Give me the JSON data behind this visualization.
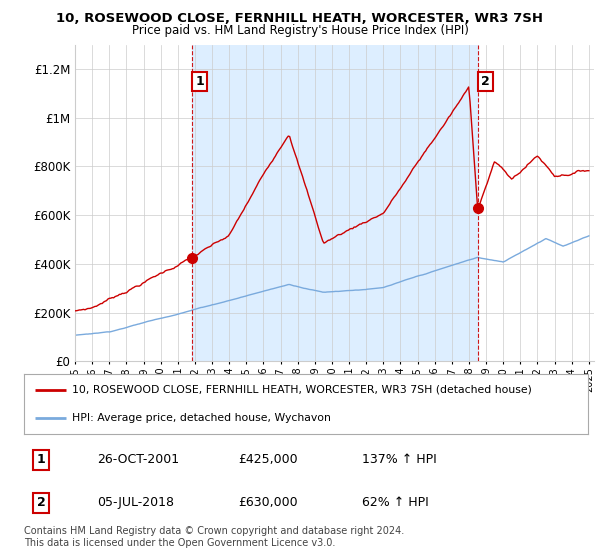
{
  "title": "10, ROSEWOOD CLOSE, FERNHILL HEATH, WORCESTER, WR3 7SH",
  "subtitle": "Price paid vs. HM Land Registry's House Price Index (HPI)",
  "legend_label_red": "10, ROSEWOOD CLOSE, FERNHILL HEATH, WORCESTER, WR3 7SH (detached house)",
  "legend_label_blue": "HPI: Average price, detached house, Wychavon",
  "transaction1_date": "26-OCT-2001",
  "transaction1_price": "£425,000",
  "transaction1_hpi": "137% ↑ HPI",
  "transaction2_date": "05-JUL-2018",
  "transaction2_price": "£630,000",
  "transaction2_hpi": "62% ↑ HPI",
  "footnote": "Contains HM Land Registry data © Crown copyright and database right 2024.\nThis data is licensed under the Open Government Licence v3.0.",
  "ylim": [
    0,
    1300000
  ],
  "yticks": [
    0,
    200000,
    400000,
    600000,
    800000,
    1000000,
    1200000
  ],
  "red_color": "#cc0000",
  "blue_color": "#7aaadd",
  "shade_color": "#ddeeff",
  "vline_color": "#cc0000",
  "marker1_x": 2001.82,
  "marker1_y": 425000,
  "marker2_x": 2018.51,
  "marker2_y": 630000,
  "background_color": "#ffffff",
  "grid_color": "#cccccc",
  "xlim_left": 1995.0,
  "xlim_right": 2025.3
}
